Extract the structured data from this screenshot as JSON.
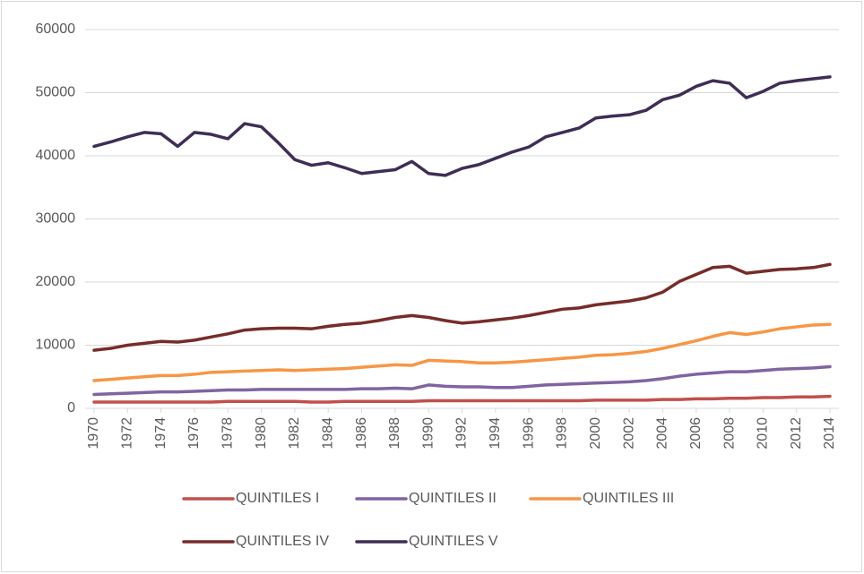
{
  "chart_data": {
    "type": "line",
    "x": [
      1970,
      1971,
      1972,
      1973,
      1974,
      1975,
      1976,
      1977,
      1978,
      1979,
      1980,
      1981,
      1982,
      1983,
      1984,
      1985,
      1986,
      1987,
      1988,
      1989,
      1990,
      1991,
      1992,
      1993,
      1994,
      1995,
      1996,
      1997,
      1998,
      1999,
      2000,
      2001,
      2002,
      2003,
      2004,
      2005,
      2006,
      2007,
      2008,
      2009,
      2010,
      2011,
      2012,
      2013,
      2014
    ],
    "xlim": [
      1970,
      2014
    ],
    "xticks": [
      1970,
      1972,
      1974,
      1976,
      1978,
      1980,
      1982,
      1984,
      1986,
      1988,
      1990,
      1992,
      1994,
      1996,
      1998,
      2000,
      2002,
      2004,
      2006,
      2008,
      2010,
      2012,
      2014
    ],
    "ylim": [
      0,
      60000
    ],
    "yticks": [
      0,
      10000,
      20000,
      30000,
      40000,
      50000,
      60000
    ],
    "grid": true,
    "legend": "bottom",
    "series": [
      {
        "name": "QUINTILES I",
        "color": "#c0504d",
        "values": [
          1000,
          1000,
          1000,
          1000,
          1000,
          1000,
          1000,
          1000,
          1100,
          1100,
          1100,
          1100,
          1100,
          1000,
          1000,
          1100,
          1100,
          1100,
          1100,
          1100,
          1200,
          1200,
          1200,
          1200,
          1200,
          1200,
          1200,
          1200,
          1200,
          1200,
          1300,
          1300,
          1300,
          1300,
          1400,
          1400,
          1500,
          1500,
          1600,
          1600,
          1700,
          1700,
          1800,
          1800,
          1900
        ]
      },
      {
        "name": "QUINTILES II",
        "color": "#8064a2",
        "values": [
          2200,
          2300,
          2400,
          2500,
          2600,
          2600,
          2700,
          2800,
          2900,
          2900,
          3000,
          3000,
          3000,
          3000,
          3000,
          3000,
          3100,
          3100,
          3200,
          3100,
          3700,
          3500,
          3400,
          3400,
          3300,
          3300,
          3500,
          3700,
          3800,
          3900,
          4000,
          4100,
          4200,
          4400,
          4700,
          5100,
          5400,
          5600,
          5800,
          5800,
          6000,
          6200,
          6300,
          6400,
          6600
        ]
      },
      {
        "name": "QUINTILES III",
        "color": "#f79646",
        "values": [
          4400,
          4600,
          4800,
          5000,
          5200,
          5200,
          5400,
          5700,
          5800,
          5900,
          6000,
          6100,
          6000,
          6100,
          6200,
          6300,
          6500,
          6700,
          6900,
          6800,
          7600,
          7500,
          7400,
          7200,
          7200,
          7300,
          7500,
          7700,
          7900,
          8100,
          8400,
          8500,
          8700,
          9000,
          9500,
          10100,
          10700,
          11400,
          12000,
          11700,
          12100,
          12600,
          12900,
          13200,
          13300
        ]
      },
      {
        "name": "QUINTILES IV",
        "color": "#772c2a",
        "values": [
          9200,
          9500,
          10000,
          10300,
          10600,
          10500,
          10800,
          11300,
          11800,
          12400,
          12600,
          12700,
          12700,
          12600,
          13000,
          13300,
          13500,
          13900,
          14400,
          14700,
          14400,
          13900,
          13500,
          13700,
          14000,
          14300,
          14700,
          15200,
          15700,
          15900,
          16400,
          16700,
          17000,
          17500,
          18400,
          20100,
          21200,
          22300,
          22500,
          21400,
          21700,
          22000,
          22100,
          22300,
          22800
        ]
      },
      {
        "name": "QUINTILES V",
        "color": "#3e2e55",
        "values": [
          41500,
          42200,
          43000,
          43700,
          43500,
          41500,
          43700,
          43400,
          42700,
          45100,
          44600,
          42100,
          39400,
          38500,
          38900,
          38100,
          37200,
          37500,
          37800,
          39100,
          37200,
          36900,
          38000,
          38600,
          39600,
          40600,
          41400,
          43000,
          43700,
          44400,
          46000,
          46300,
          46500,
          47200,
          48900,
          49600,
          51000,
          51900,
          51500,
          49200,
          50200,
          51500,
          51900,
          52200,
          52500
        ]
      }
    ]
  }
}
